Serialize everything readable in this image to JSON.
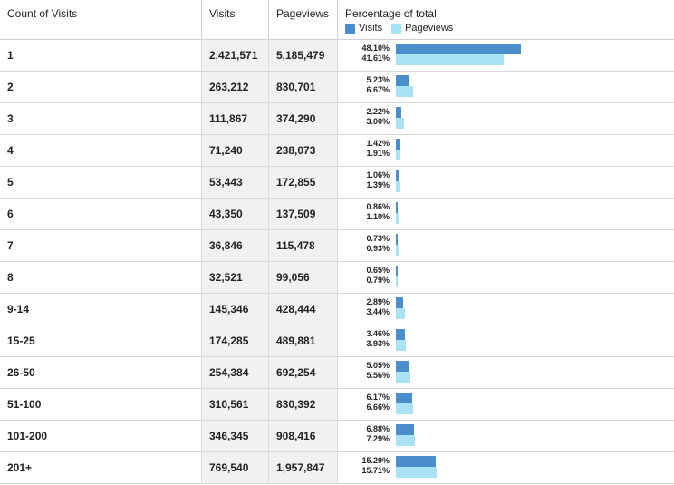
{
  "header": {
    "count_label": "Count of Visits",
    "visits_label": "Visits",
    "pageviews_label": "Pageviews",
    "percentage_label": "Percentage of total",
    "legend_visits": "Visits",
    "legend_pageviews": "Pageviews"
  },
  "colors": {
    "visits": "#4a8fcb",
    "pageviews": "#a9e1f5"
  },
  "rows": [
    {
      "count": "1",
      "visits": "2,421,571",
      "pageviews": "5,185,479",
      "visits_pct": "48.10%",
      "pageviews_pct": "41.61%",
      "visits_frac": 0.481,
      "pageviews_frac": 0.4161
    },
    {
      "count": "2",
      "visits": "263,212",
      "pageviews": "830,701",
      "visits_pct": "5.23%",
      "pageviews_pct": "6.67%",
      "visits_frac": 0.0523,
      "pageviews_frac": 0.0667
    },
    {
      "count": "3",
      "visits": "111,867",
      "pageviews": "374,290",
      "visits_pct": "2.22%",
      "pageviews_pct": "3.00%",
      "visits_frac": 0.0222,
      "pageviews_frac": 0.03
    },
    {
      "count": "4",
      "visits": "71,240",
      "pageviews": "238,073",
      "visits_pct": "1.42%",
      "pageviews_pct": "1.91%",
      "visits_frac": 0.0142,
      "pageviews_frac": 0.0191
    },
    {
      "count": "5",
      "visits": "53,443",
      "pageviews": "172,855",
      "visits_pct": "1.06%",
      "pageviews_pct": "1.39%",
      "visits_frac": 0.0106,
      "pageviews_frac": 0.0139
    },
    {
      "count": "6",
      "visits": "43,350",
      "pageviews": "137,509",
      "visits_pct": "0.86%",
      "pageviews_pct": "1.10%",
      "visits_frac": 0.0086,
      "pageviews_frac": 0.011
    },
    {
      "count": "7",
      "visits": "36,846",
      "pageviews": "115,478",
      "visits_pct": "0.73%",
      "pageviews_pct": "0.93%",
      "visits_frac": 0.0073,
      "pageviews_frac": 0.0093
    },
    {
      "count": "8",
      "visits": "32,521",
      "pageviews": "99,056",
      "visits_pct": "0.65%",
      "pageviews_pct": "0.79%",
      "visits_frac": 0.0065,
      "pageviews_frac": 0.0079
    },
    {
      "count": "9-14",
      "visits": "145,346",
      "pageviews": "428,444",
      "visits_pct": "2.89%",
      "pageviews_pct": "3.44%",
      "visits_frac": 0.0289,
      "pageviews_frac": 0.0344
    },
    {
      "count": "15-25",
      "visits": "174,285",
      "pageviews": "489,881",
      "visits_pct": "3.46%",
      "pageviews_pct": "3.93%",
      "visits_frac": 0.0346,
      "pageviews_frac": 0.0393
    },
    {
      "count": "26-50",
      "visits": "254,384",
      "pageviews": "692,254",
      "visits_pct": "5.05%",
      "pageviews_pct": "5.56%",
      "visits_frac": 0.0505,
      "pageviews_frac": 0.0556
    },
    {
      "count": "51-100",
      "visits": "310,561",
      "pageviews": "830,392",
      "visits_pct": "6.17%",
      "pageviews_pct": "6.66%",
      "visits_frac": 0.0617,
      "pageviews_frac": 0.0666
    },
    {
      "count": "101-200",
      "visits": "346,345",
      "pageviews": "908,416",
      "visits_pct": "6.88%",
      "pageviews_pct": "7.29%",
      "visits_frac": 0.0688,
      "pageviews_frac": 0.0729
    },
    {
      "count": "201+",
      "visits": "769,540",
      "pageviews": "1,957,847",
      "visits_pct": "15.29%",
      "pageviews_pct": "15.71%",
      "visits_frac": 0.1529,
      "pageviews_frac": 0.1571
    }
  ]
}
